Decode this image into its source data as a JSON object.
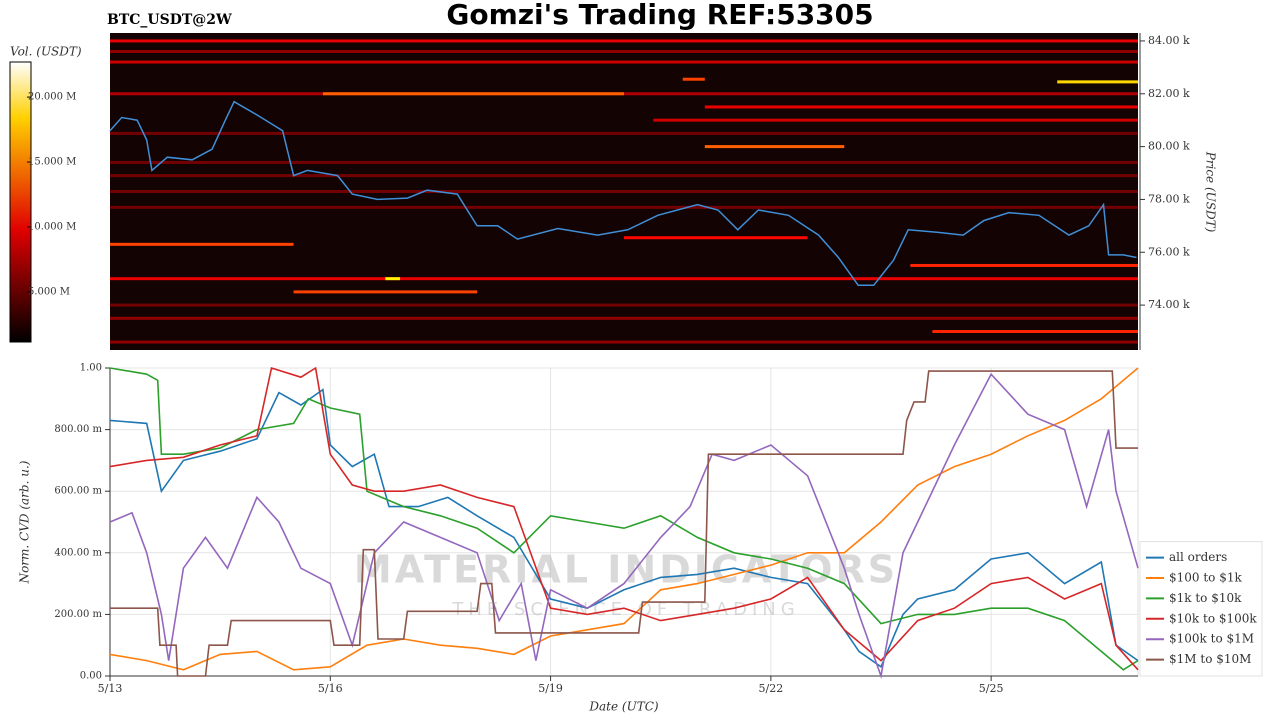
{
  "chart_data": [
    {
      "type": "heatmap",
      "title": "Gomzi's Trading REF:53305",
      "subtitle": "BTC_USDT@2W",
      "ylabel": "Price (USDT)",
      "colorbar_label": "Vol. (USDT)",
      "background": "#140303",
      "xlim": [
        0,
        14
      ],
      "ylim": [
        72300,
        84300
      ],
      "yticks": [
        {
          "value": 74000,
          "label": "74.00 k"
        },
        {
          "value": 76000,
          "label": "76.00 k"
        },
        {
          "value": 78000,
          "label": "78.00 k"
        },
        {
          "value": 80000,
          "label": "80.00 k"
        },
        {
          "value": 82000,
          "label": "82.00 k"
        },
        {
          "value": 84000,
          "label": "84.00 k"
        }
      ],
      "clim": [
        1150000,
        22700000
      ],
      "cticks": [
        {
          "value": 5000000,
          "label": "5.000 M"
        },
        {
          "value": 10000000,
          "label": "10.000 M"
        },
        {
          "value": 15000000,
          "label": "15.000 M"
        },
        {
          "value": 20000000,
          "label": "20.000 M"
        }
      ],
      "bands": [
        {
          "price": 84000,
          "start": 0,
          "end": 14,
          "volume": 8000000
        },
        {
          "price": 83600,
          "start": 0,
          "end": 14,
          "volume": 5000000
        },
        {
          "price": 83200,
          "start": 0,
          "end": 14,
          "volume": 7000000
        },
        {
          "price": 82550,
          "start": 7.8,
          "end": 8.1,
          "volume": 12000000
        },
        {
          "price": 82450,
          "start": 12.9,
          "end": 14,
          "volume": 17000000
        },
        {
          "price": 82000,
          "start": 0,
          "end": 14,
          "volume": 6000000
        },
        {
          "price": 82000,
          "start": 2.9,
          "end": 7,
          "volume": 13000000
        },
        {
          "price": 81500,
          "start": 8.1,
          "end": 14,
          "volume": 8000000
        },
        {
          "price": 81000,
          "start": 7.4,
          "end": 14,
          "volume": 7000000
        },
        {
          "price": 80500,
          "start": 0,
          "end": 14,
          "volume": 4000000
        },
        {
          "price": 80000,
          "start": 8.1,
          "end": 10,
          "volume": 13000000
        },
        {
          "price": 79400,
          "start": 0,
          "end": 14,
          "volume": 4000000
        },
        {
          "price": 78900,
          "start": 0,
          "end": 14,
          "volume": 4000000
        },
        {
          "price": 78300,
          "start": 0,
          "end": 14,
          "volume": 4000000
        },
        {
          "price": 77700,
          "start": 0,
          "end": 14,
          "volume": 4000000
        },
        {
          "price": 76550,
          "start": 7,
          "end": 9.5,
          "volume": 10000000
        },
        {
          "price": 76300,
          "start": 0,
          "end": 2.5,
          "volume": 12000000
        },
        {
          "price": 75500,
          "start": 10.9,
          "end": 14,
          "volume": 11000000
        },
        {
          "price": 75000,
          "start": 0,
          "end": 14,
          "volume": 8000000
        },
        {
          "price": 75000,
          "start": 3.75,
          "end": 3.95,
          "volume": 18000000
        },
        {
          "price": 74500,
          "start": 2.5,
          "end": 5,
          "volume": 12000000
        },
        {
          "price": 74000,
          "start": 0,
          "end": 14,
          "volume": 4000000
        },
        {
          "price": 73500,
          "start": 0,
          "end": 14,
          "volume": 5000000
        },
        {
          "price": 73000,
          "start": 11.2,
          "end": 14,
          "volume": 11000000
        },
        {
          "price": 72600,
          "start": 0,
          "end": 14,
          "volume": 5000000
        }
      ],
      "series": [
        {
          "color": "#3f8fd8",
          "x": [
            0,
            0.16,
            0.37,
            0.5,
            0.57,
            0.78,
            1.12,
            1.39,
            1.57,
            1.69,
            2,
            2.35,
            2.5,
            2.69,
            3.1,
            3.3,
            3.64,
            4.05,
            4.32,
            4.73,
            5,
            5.28,
            5.55,
            6.1,
            6.64,
            7.05,
            7.46,
            8,
            8.28,
            8.55,
            8.83,
            9.24,
            9.65,
            9.92,
            10.19,
            10.4,
            10.67,
            10.87,
            11.28,
            11.62,
            11.9,
            12.24,
            12.65,
            13.06,
            13.33,
            13.53,
            13.6,
            13.8,
            13.98
          ],
          "values": [
            80600,
            81100,
            81000,
            80250,
            79100,
            79600,
            79500,
            79900,
            81000,
            81700,
            81200,
            80600,
            78900,
            79100,
            78900,
            78200,
            78000,
            78050,
            78350,
            78200,
            77000,
            77000,
            76500,
            76900,
            76650,
            76850,
            77400,
            77800,
            77600,
            76850,
            77600,
            77400,
            76650,
            75800,
            74750,
            74750,
            75700,
            76850,
            76750,
            76650,
            77200,
            77500,
            77400,
            76650,
            77000,
            77800,
            75900,
            75900,
            75800
          ]
        }
      ]
    },
    {
      "type": "line",
      "xlabel": "Date (UTC)",
      "ylabel": "Norm. CVD (arb. u.)",
      "watermark": [
        "MATERIAL INDICATORS",
        "THE SCIENCE OF TRADING"
      ],
      "grid": true,
      "legend": "right",
      "xlim": [
        0,
        14
      ],
      "ylim": [
        0,
        1
      ],
      "xticks": [
        {
          "value": 0,
          "label": "5/13"
        },
        {
          "value": 3,
          "label": "5/16"
        },
        {
          "value": 6,
          "label": "5/19"
        },
        {
          "value": 9,
          "label": "5/22"
        },
        {
          "value": 12,
          "label": "5/25"
        }
      ],
      "yticks": [
        {
          "value": 0,
          "label": "0.00"
        },
        {
          "value": 0.2,
          "label": "200.00 m"
        },
        {
          "value": 0.4,
          "label": "400.00 m"
        },
        {
          "value": 0.6,
          "label": "600.00 m"
        },
        {
          "value": 0.8,
          "label": "800.00 m"
        },
        {
          "value": 1,
          "label": "1.00"
        }
      ],
      "series": [
        {
          "name": "all orders",
          "color": "#1f77b4",
          "x": [
            0,
            0.5,
            0.7,
            1,
            1.5,
            2,
            2.3,
            2.6,
            2.9,
            3,
            3.3,
            3.6,
            3.8,
            4.2,
            4.6,
            5,
            5.5,
            6,
            6.5,
            7,
            7.5,
            8,
            8.5,
            9,
            9.5,
            10,
            10.2,
            10.5,
            10.8,
            11,
            11.5,
            12,
            12.5,
            13,
            13.5,
            13.7,
            14
          ],
          "values": [
            0.83,
            0.82,
            0.6,
            0.7,
            0.73,
            0.77,
            0.92,
            0.88,
            0.93,
            0.75,
            0.68,
            0.72,
            0.55,
            0.55,
            0.58,
            0.52,
            0.45,
            0.25,
            0.22,
            0.28,
            0.32,
            0.33,
            0.35,
            0.32,
            0.3,
            0.15,
            0.08,
            0.03,
            0.2,
            0.25,
            0.28,
            0.38,
            0.4,
            0.3,
            0.37,
            0.1,
            0.05
          ]
        },
        {
          "name": "$100 to $1k",
          "color": "#ff7f0e",
          "x": [
            0,
            0.5,
            1,
            1.5,
            2,
            2.5,
            3,
            3.5,
            4,
            4.5,
            5,
            5.5,
            6,
            6.5,
            7,
            7.5,
            8,
            8.5,
            9,
            9.5,
            10,
            10.5,
            11,
            11.5,
            12,
            12.5,
            13,
            13.5,
            14
          ],
          "values": [
            0.07,
            0.05,
            0.02,
            0.07,
            0.08,
            0.02,
            0.03,
            0.1,
            0.12,
            0.1,
            0.09,
            0.07,
            0.13,
            0.15,
            0.17,
            0.28,
            0.3,
            0.33,
            0.36,
            0.4,
            0.4,
            0.5,
            0.62,
            0.68,
            0.72,
            0.78,
            0.83,
            0.9,
            1
          ]
        },
        {
          "name": "$1k to $10k",
          "color": "#2ca02c",
          "x": [
            0,
            0.5,
            0.65,
            0.7,
            1,
            1.5,
            2,
            2.5,
            2.7,
            3,
            3.4,
            3.5,
            4,
            4.5,
            5,
            5.5,
            6,
            6.5,
            7,
            7.5,
            8,
            8.5,
            9,
            9.5,
            10,
            10.5,
            11,
            11.5,
            12,
            12.5,
            13,
            13.5,
            13.8,
            14
          ],
          "values": [
            1,
            0.98,
            0.96,
            0.72,
            0.72,
            0.74,
            0.8,
            0.82,
            0.9,
            0.87,
            0.85,
            0.6,
            0.55,
            0.52,
            0.48,
            0.4,
            0.52,
            0.5,
            0.48,
            0.52,
            0.45,
            0.4,
            0.38,
            0.35,
            0.3,
            0.17,
            0.2,
            0.2,
            0.22,
            0.22,
            0.18,
            0.08,
            0.02,
            0.05
          ]
        },
        {
          "name": "$10k to $100k",
          "color": "#d62728",
          "x": [
            0,
            0.5,
            1,
            1.5,
            2,
            2.2,
            2.6,
            2.8,
            3,
            3.3,
            3.6,
            4,
            4.5,
            5,
            5.5,
            6,
            6.5,
            7,
            7.5,
            8,
            8.5,
            9,
            9.5,
            10,
            10.5,
            11,
            11.5,
            12,
            12.5,
            13,
            13.5,
            13.7,
            14
          ],
          "values": [
            0.68,
            0.7,
            0.71,
            0.75,
            0.78,
            1,
            0.97,
            1,
            0.72,
            0.62,
            0.6,
            0.6,
            0.62,
            0.58,
            0.55,
            0.22,
            0.2,
            0.22,
            0.18,
            0.2,
            0.22,
            0.25,
            0.32,
            0.15,
            0.05,
            0.18,
            0.22,
            0.3,
            0.32,
            0.25,
            0.3,
            0.1,
            0.02
          ]
        },
        {
          "name": "$100k to $1M",
          "color": "#9467bd",
          "x": [
            0,
            0.3,
            0.5,
            0.7,
            0.8,
            1,
            1.3,
            1.6,
            2,
            2.3,
            2.6,
            3,
            3.3,
            3.6,
            4,
            4.5,
            5,
            5.3,
            5.6,
            5.8,
            6,
            6.5,
            7,
            7.5,
            7.9,
            8.2,
            8.5,
            9,
            9.5,
            10,
            10.2,
            10.5,
            10.8,
            11,
            11.5,
            12,
            12.5,
            13,
            13.3,
            13.6,
            13.7,
            14
          ],
          "values": [
            0.5,
            0.53,
            0.4,
            0.2,
            0.05,
            0.35,
            0.45,
            0.35,
            0.58,
            0.5,
            0.35,
            0.3,
            0.1,
            0.4,
            0.5,
            0.45,
            0.4,
            0.18,
            0.3,
            0.05,
            0.28,
            0.22,
            0.3,
            0.45,
            0.55,
            0.72,
            0.7,
            0.75,
            0.65,
            0.35,
            0.2,
            0,
            0.4,
            0.5,
            0.75,
            0.98,
            0.85,
            0.8,
            0.55,
            0.8,
            0.6,
            0.35
          ]
        },
        {
          "name": "$1M to $10M",
          "color": "#8c564b",
          "x": [
            0,
            0.65,
            0.68,
            0.9,
            0.92,
            1.3,
            1.35,
            1.6,
            1.65,
            3,
            3.05,
            3.4,
            3.45,
            3.6,
            3.65,
            4,
            4.05,
            5,
            5.05,
            5.2,
            5.25,
            7.2,
            7.25,
            8.1,
            8.15,
            10.8,
            10.85,
            10.95,
            11.1,
            11.15,
            13.65,
            13.7,
            14
          ],
          "values": [
            0.22,
            0.22,
            0.1,
            0.1,
            0,
            0,
            0.1,
            0.1,
            0.18,
            0.18,
            0.1,
            0.1,
            0.41,
            0.41,
            0.12,
            0.12,
            0.21,
            0.21,
            0.3,
            0.3,
            0.14,
            0.14,
            0.24,
            0.24,
            0.72,
            0.72,
            0.83,
            0.89,
            0.89,
            0.99,
            0.99,
            0.74,
            0.74
          ]
        }
      ]
    }
  ]
}
